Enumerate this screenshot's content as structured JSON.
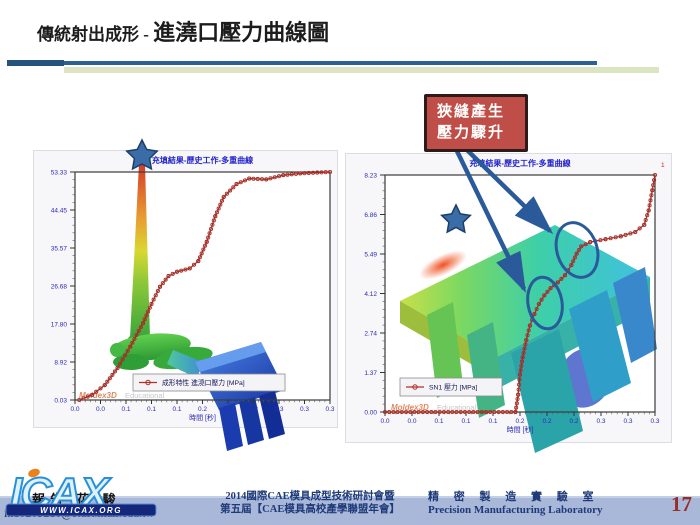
{
  "slide": {
    "title_prefix": "傳統射出成形 - ",
    "title_main": "進澆口壓力曲線圖",
    "page_number": "17"
  },
  "callout": {
    "line1": "狹縫產生",
    "line2": "壓力驟升"
  },
  "footer": {
    "logo_text": "ICAX",
    "logo_banner": "WWW.ICAX.ORG",
    "reporter": "報告 花 駿",
    "email": "in10203210@stust.mail.edu.tw",
    "conference_line1": "2014國際CAE模具成型技術研討會暨",
    "conference_line2": "第五屆【CAE模具高校產學聯盟年會】",
    "lab_zh": "精 密 製 造 實 驗 室",
    "lab_en": "Precision  Manufacturing  Laboratory"
  },
  "colors": {
    "divider_blue": "#2e6096",
    "divider_green": "#dbe5c3",
    "callout_bg": "#bf4e48",
    "annotation_blue": "#2a5a9a",
    "curve_red": "#9e2b25",
    "axis_text_blue": "#2a2ab8",
    "footer_band": "#a9b7d9",
    "page_number_red": "#943028"
  },
  "chart_data": [
    {
      "id": "left",
      "type": "line",
      "title": "充填結果-歷史工作-多重曲線",
      "xlabel": "時間 [秒]",
      "legend": "成形特性 進澆口壓力 [MPa]",
      "watermark_brand": "Moldex3D",
      "watermark_suffix": "Educational",
      "xlim": [
        0,
        0.3
      ],
      "ylim": [
        0.03,
        53.33
      ],
      "ytick_labels": [
        "53.33",
        "44.45",
        "35.57",
        "26.68",
        "17.80",
        "8.92",
        "0.03"
      ],
      "xtick_labels": [
        "0.0",
        "0.0",
        "0.1",
        "0.1",
        "0.1",
        "0.2",
        "0.2",
        "0.2",
        "0.3",
        "0.3",
        "0.3"
      ],
      "series": [
        {
          "name": "成形特性 進澆口壓力 [MPa]",
          "points": [
            [
              0.005,
              0.03
            ],
            [
              0.02,
              1.2
            ],
            [
              0.035,
              3.5
            ],
            [
              0.05,
              7.5
            ],
            [
              0.065,
              12.5
            ],
            [
              0.08,
              18
            ],
            [
              0.09,
              22.5
            ],
            [
              0.1,
              26.5
            ],
            [
              0.11,
              29
            ],
            [
              0.12,
              30
            ],
            [
              0.135,
              30.8
            ],
            [
              0.145,
              32.5
            ],
            [
              0.155,
              37
            ],
            [
              0.165,
              43
            ],
            [
              0.175,
              47.5
            ],
            [
              0.19,
              50.5
            ],
            [
              0.205,
              51.8
            ],
            [
              0.225,
              51.6
            ],
            [
              0.245,
              52.6
            ],
            [
              0.265,
              53.0
            ],
            [
              0.285,
              53.2
            ],
            [
              0.3,
              53.33
            ]
          ]
        }
      ]
    },
    {
      "id": "right",
      "type": "line",
      "title": "充填結果-歷史工作-多重曲線",
      "xlabel": "時間 [秒]",
      "legend": "SN1 壓力 [MPa]",
      "watermark_brand": "Moldex3D",
      "watermark_suffix": "Educational",
      "corner_mark": "1",
      "xlim": [
        0,
        0.3
      ],
      "ylim": [
        0,
        8.23
      ],
      "ytick_labels": [
        "8.23",
        "6.86",
        "5.49",
        "4.12",
        "2.74",
        "1.37",
        "0.00"
      ],
      "xtick_labels": [
        "0.0",
        "0.0",
        "0.1",
        "0.1",
        "0.1",
        "0.2",
        "0.2",
        "0.2",
        "0.3",
        "0.3",
        "0.3"
      ],
      "series": [
        {
          "name": "SN1 壓力 [MPa]",
          "points": [
            [
              0.0,
              0.0
            ],
            [
              0.145,
              0.0
            ],
            [
              0.148,
              0.6
            ],
            [
              0.15,
              1.3
            ],
            [
              0.153,
              1.9
            ],
            [
              0.157,
              2.5
            ],
            [
              0.161,
              3.0
            ],
            [
              0.166,
              3.4
            ],
            [
              0.171,
              3.75
            ],
            [
              0.177,
              4.05
            ],
            [
              0.184,
              4.3
            ],
            [
              0.192,
              4.5
            ],
            [
              0.2,
              4.75
            ],
            [
              0.207,
              5.1
            ],
            [
              0.213,
              5.5
            ],
            [
              0.218,
              5.75
            ],
            [
              0.228,
              5.9
            ],
            [
              0.245,
              6.0
            ],
            [
              0.262,
              6.1
            ],
            [
              0.278,
              6.25
            ],
            [
              0.288,
              6.5
            ],
            [
              0.293,
              7.0
            ],
            [
              0.297,
              7.7
            ],
            [
              0.3,
              8.23
            ]
          ]
        }
      ]
    }
  ]
}
